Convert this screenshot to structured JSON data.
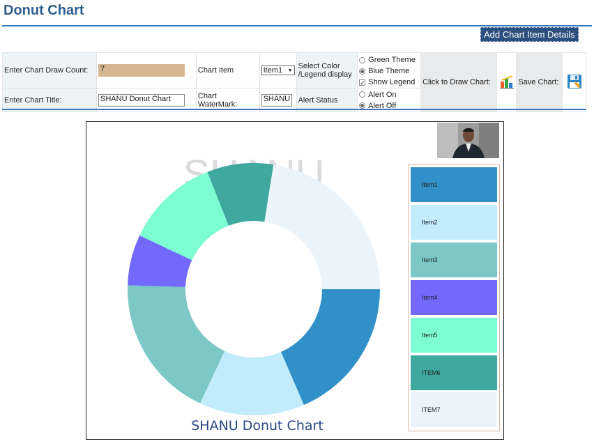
{
  "header": {
    "title": "Donut Chart",
    "add_button_label": "Add Chart Item Details"
  },
  "form": {
    "draw_count_label": "Enter Chart Draw Count:",
    "draw_count_value": "7",
    "title_label": "Enter Chart Title:",
    "title_value": "SHANU Donut Chart",
    "chart_item_label": "Chart Item",
    "chart_item_selected": "Item1",
    "watermark_label": "Chart WaterMark:",
    "watermark_value": "SHANU",
    "select_color_label_1": "Select Color",
    "select_color_label_2": "/Legend display",
    "alert_status_label": "Alert Status",
    "options": {
      "green_theme": "Green Theme",
      "blue_theme": "Blue Theme",
      "show_legend": "Show Legend",
      "alert_on": "Alert On",
      "alert_off": "Alert Off"
    },
    "draw_label": "Click to Draw Chart:",
    "save_label": "Save Chart:"
  },
  "chart_data": {
    "type": "pie",
    "donut": true,
    "title": "SHANU Donut Chart",
    "watermark": "SHANU",
    "legend_position": "right",
    "slices": [
      {
        "label": "Item1",
        "value": 18.5,
        "color": "#3190c7"
      },
      {
        "label": "Item2",
        "value": 13.5,
        "color": "#c2ecfb"
      },
      {
        "label": "Item3",
        "value": 18.5,
        "color": "#7bc8c7"
      },
      {
        "label": "Item4",
        "value": 6.5,
        "color": "#7369fc"
      },
      {
        "label": "Item5",
        "value": 12.0,
        "color": "#7cfdd2"
      },
      {
        "label": "ITEM6",
        "value": 8.5,
        "color": "#3fa9a0"
      },
      {
        "label": "ITEM7",
        "value": 22.5,
        "color": "#ebf3fb"
      }
    ]
  },
  "colors": {
    "accent": "#3a78b5",
    "title_text": "#2f5f8d",
    "button_bg": "#2d4f7e",
    "chart_title_text": "#2a4782"
  },
  "icons": {
    "draw": "bar-chart-icon",
    "save": "save-disk-icon"
  }
}
